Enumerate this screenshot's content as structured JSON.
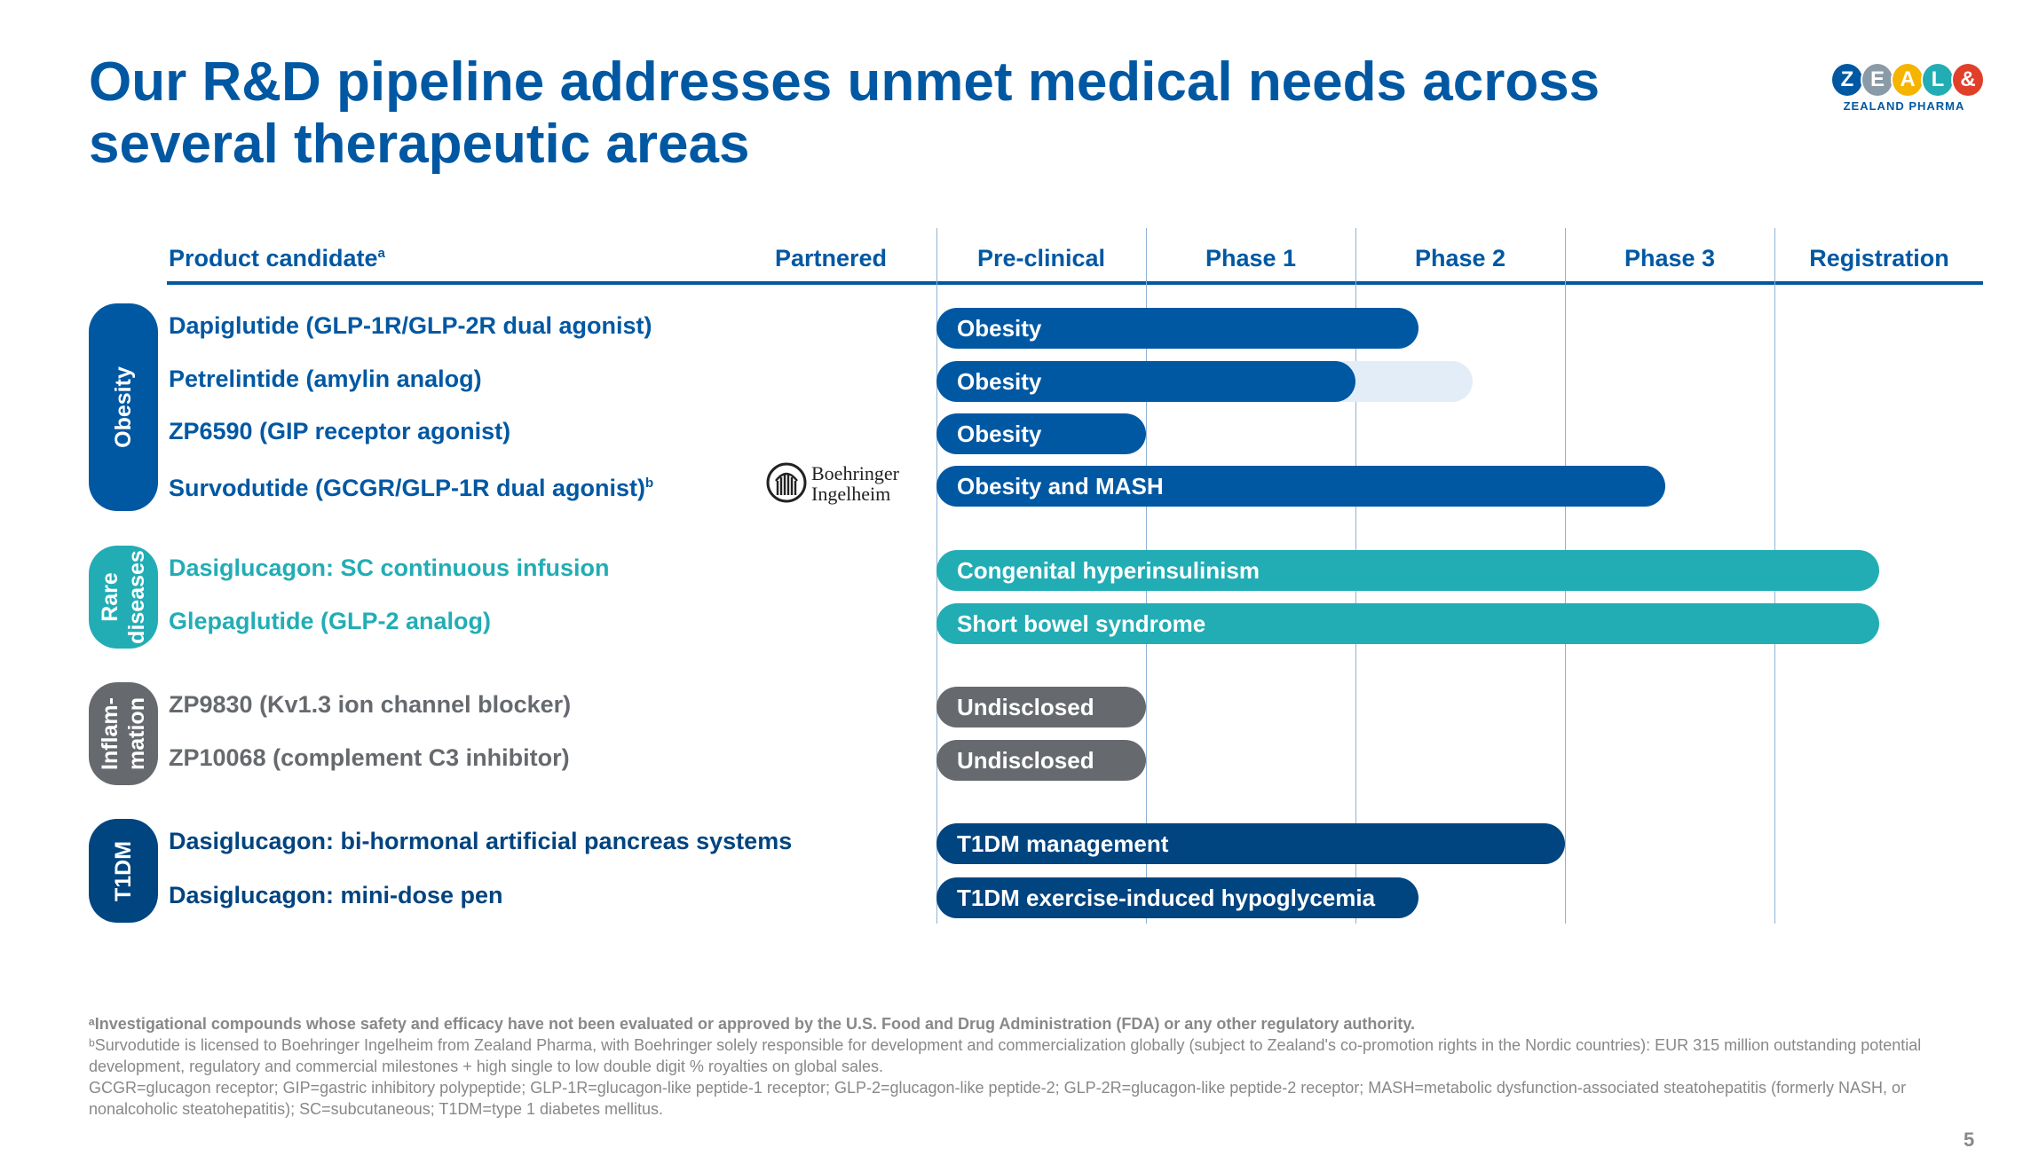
{
  "title": "Our R&D pipeline addresses unmet medical needs across several therapeutic areas",
  "logo": {
    "letters": [
      "Z",
      "E",
      "A",
      "L",
      "&"
    ],
    "colors": [
      "#0058a3",
      "#8a9aa6",
      "#f5b400",
      "#22adb5",
      "#e0402a"
    ],
    "subtitle": "ZEALAND PHARMA"
  },
  "header": {
    "product_candidate": "Product candidate",
    "product_candidate_sup": "a",
    "partnered": "Partnered",
    "phases": [
      "Pre-clinical",
      "Phase 1",
      "Phase 2",
      "Phase 3",
      "Registration"
    ]
  },
  "categories": [
    {
      "label": "Obesity",
      "color": "#0058a3"
    },
    {
      "label": "Rare diseases",
      "color": "#22adb5"
    },
    {
      "label": "Inflam-mation",
      "color": "#666a6e"
    },
    {
      "label": "T1DM",
      "color": "#004480"
    }
  ],
  "candidates": [
    {
      "name": "Dapiglutide (GLP-1R/GLP-2R dual agonist)",
      "indication": "Obesity",
      "category": "Obesity",
      "color": "#0058a3",
      "stage_end": 2.3
    },
    {
      "name": "Petrelintide (amylin analog)",
      "indication": "Obesity",
      "category": "Obesity",
      "color": "#0058a3",
      "stage_end": 2.0,
      "planned_end": 2.56
    },
    {
      "name": "ZP6590 (GIP receptor agonist)",
      "indication": "Obesity",
      "category": "Obesity",
      "color": "#0058a3",
      "stage_end": 1.0
    },
    {
      "name": "Survodutide (GCGR/GLP-1R dual agonist)",
      "name_sup": "b",
      "indication": "Obesity and MASH",
      "category": "Obesity",
      "color": "#0058a3",
      "stage_end": 3.48,
      "partner": "Boehringer Ingelheim"
    },
    {
      "name": "Dasiglucagon: SC continuous infusion",
      "indication": "Congenital hyperinsulinism",
      "category": "Rare diseases",
      "color": "#22adb5",
      "stage_end": 4.5
    },
    {
      "name": "Glepaglutide (GLP-2 analog)",
      "indication": "Short bowel syndrome",
      "category": "Rare diseases",
      "color": "#22adb5",
      "stage_end": 4.5
    },
    {
      "name": "ZP9830 (Kv1.3 ion channel blocker)",
      "indication": "Undisclosed",
      "category": "Inflam-mation",
      "color": "#666a6e",
      "stage_end": 1.0
    },
    {
      "name": "ZP10068 (complement C3 inhibitor)",
      "indication": "Undisclosed",
      "category": "Inflam-mation",
      "color": "#666a6e",
      "stage_end": 1.0
    },
    {
      "name": "Dasiglucagon: bi-hormonal artificial pancreas systems",
      "indication": "T1DM management",
      "category": "T1DM",
      "color": "#004480",
      "stage_end": 3.0
    },
    {
      "name": "Dasiglucagon: mini-dose pen",
      "indication": "T1DM exercise-induced hypoglycemia",
      "category": "T1DM",
      "color": "#004480",
      "stage_end": 2.3
    }
  ],
  "partner": {
    "line1": "Boehringer",
    "line2": "Ingelheim"
  },
  "footnotes": {
    "a": "ᵃInvestigational compounds whose safety and efficacy have not been evaluated or approved by the U.S. Food and Drug Administration (FDA) or any other regulatory authority.",
    "b": "ᵇSurvodutide is licensed to Boehringer Ingelheim from Zealand Pharma, with Boehringer solely responsible for development and commercialization globally (subject to Zealand's co-promotion rights in the Nordic countries): EUR 315 million outstanding potential development, regulatory and commercial milestones + high single to low double digit % royalties on global sales.",
    "abbrev": "GCGR=glucagon receptor; GIP=gastric inhibitory polypeptide; GLP-1R=glucagon-like peptide-1 receptor; GLP-2=glucagon-like peptide-2; GLP-2R=glucagon-like peptide-2 receptor; MASH=metabolic dysfunction-associated steatohepatitis (formerly NASH, or nonalcoholic steatohepatitis); SC=subcutaneous; T1DM=type 1 diabetes mellitus."
  },
  "page_number": "5",
  "colors": {
    "primary": "#0058a3",
    "teal": "#22adb5",
    "grey": "#666a6e",
    "navy": "#004480",
    "planned": "#e3edf8"
  }
}
